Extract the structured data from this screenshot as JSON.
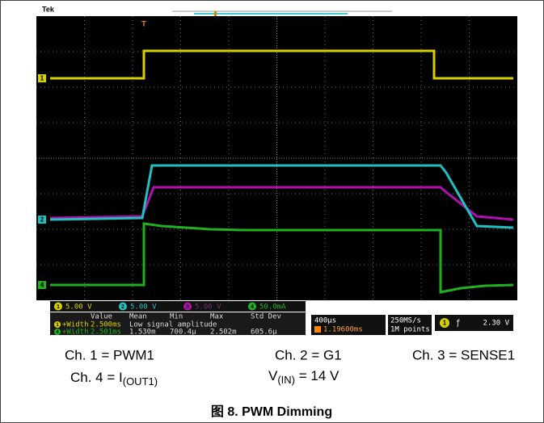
{
  "scope": {
    "brand": "Tek",
    "markers": [
      "T",
      "1",
      "2",
      "4"
    ],
    "channels": [
      {
        "label": "1",
        "scale": "5.00 V"
      },
      {
        "label": "2",
        "scale": "5.00 V"
      },
      {
        "label": "3",
        "scale": "5.00 V"
      },
      {
        "label": "4",
        "scale": "50.0mA"
      }
    ],
    "measurements": {
      "headers": [
        "Value",
        "Mean",
        "Min",
        "Max",
        "Std Dev"
      ],
      "rows": [
        {
          "channel": "1",
          "label": "+Width",
          "cells": [
            "2.500ms",
            "Low signal amplitude"
          ]
        },
        {
          "channel": "4",
          "label": "+Width",
          "cells": [
            "2.501ms",
            "1.530m",
            "700.4µ",
            "2.502m",
            "605.6µ"
          ]
        }
      ]
    },
    "timebase": "400µs",
    "trigger_position": "1.19600ms",
    "sample_rate": "250MS/s",
    "record_length": "1M points",
    "trigger": {
      "channel": "1",
      "level": "2.30 V"
    }
  },
  "captions": {
    "ch1": "Ch. 1 = PWM1",
    "ch2": "Ch. 2 = G1",
    "ch3": "Ch. 3 = SENSE1",
    "ch4": {
      "text": "Ch. 4 = I",
      "sub": "(OUT1)"
    },
    "vin": {
      "text": "V",
      "sub": "(IN)",
      "rest": " = 14 V"
    }
  },
  "figure_title": "图 8. PWM Dimming"
}
